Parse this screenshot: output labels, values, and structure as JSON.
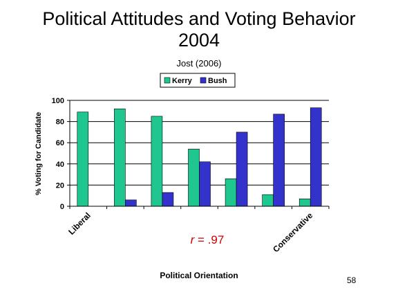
{
  "slide": {
    "title_line1": "Political Attitudes and Voting Behavior",
    "title_line2": "2004",
    "subtitle": "Jost (2006)",
    "slide_number": "58",
    "annotation_var": "r",
    "annotation_rest": " = .97",
    "annotation_color": "#cc0000"
  },
  "chart_data": {
    "type": "bar",
    "title": "",
    "xlabel": "Political Orientation",
    "ylabel": "% Voting for Candidate",
    "ylim": [
      0,
      100
    ],
    "yticks": [
      0,
      20,
      40,
      60,
      80,
      100
    ],
    "grid": true,
    "legend_position": "top",
    "category_count": 7,
    "x_tick_labels": [
      {
        "category_index": 0,
        "text": "Liberal"
      },
      {
        "category_index": 6,
        "text": "Conservative"
      }
    ],
    "series": [
      {
        "name": "Kerry",
        "color": "#1fc68f",
        "values": [
          89,
          92,
          85,
          54,
          26,
          11,
          7
        ]
      },
      {
        "name": "Bush",
        "color": "#3333cc",
        "values": [
          0,
          6,
          13,
          42,
          70,
          87,
          93
        ]
      }
    ]
  }
}
